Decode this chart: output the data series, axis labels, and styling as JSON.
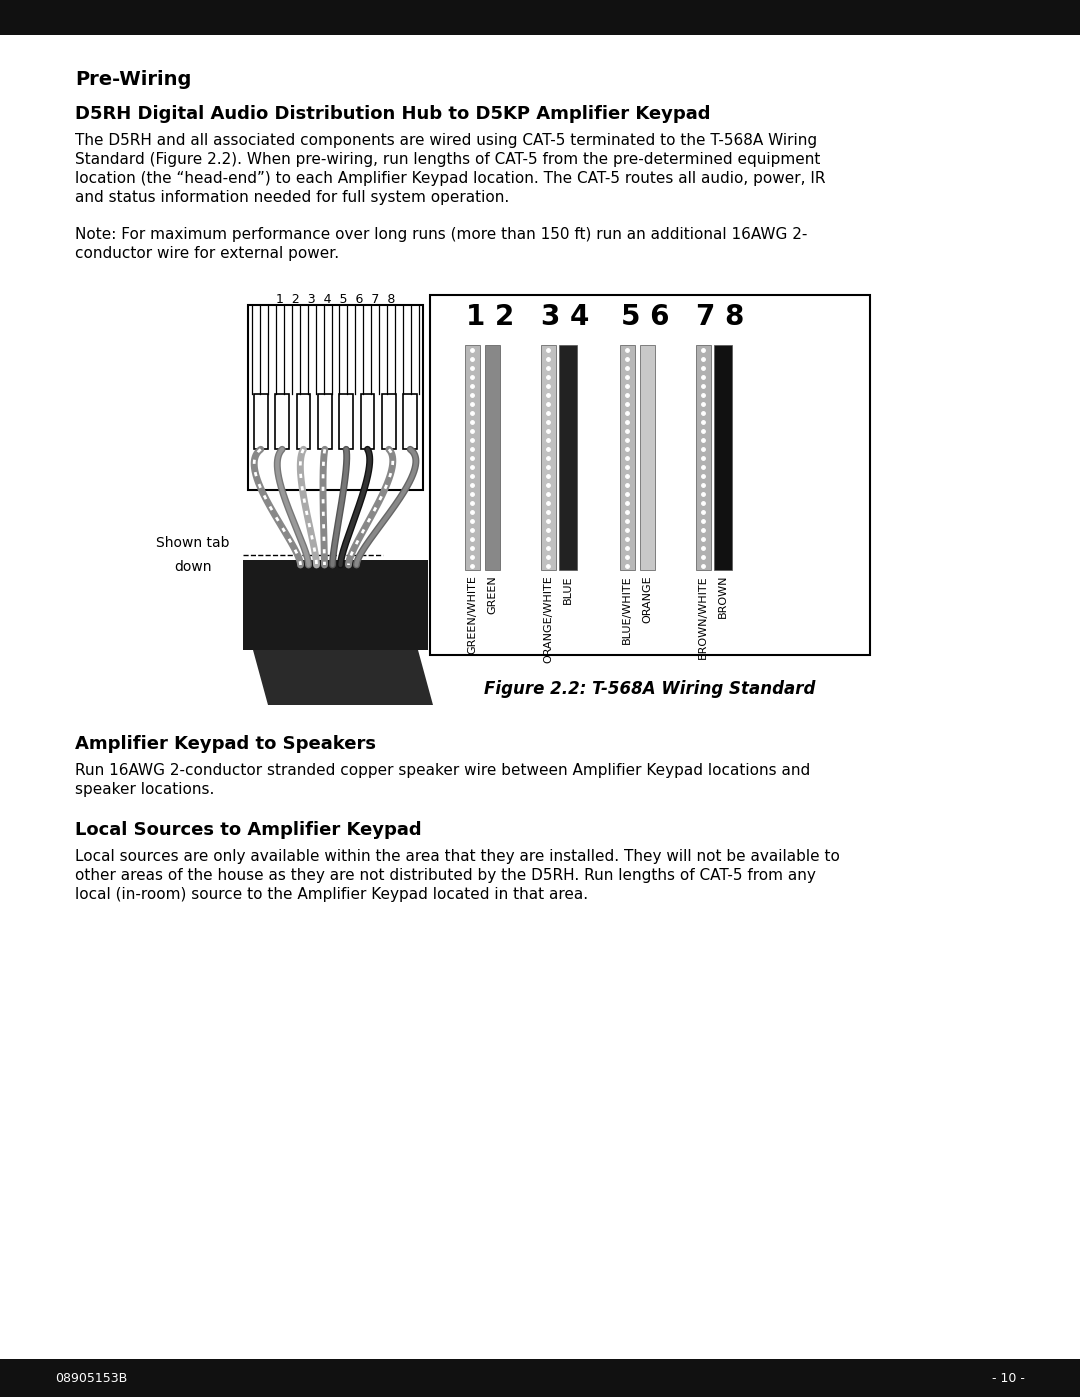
{
  "title_bar_color": "#111111",
  "background_color": "#ffffff",
  "text_color": "#000000",
  "section1_heading": "Pre-Wiring",
  "section2_heading": "D5RH Digital Audio Distribution Hub to D5KP Amplifier Keypad",
  "section2_body_lines": [
    "The D5RH and all associated components are wired using CAT-5 terminated to the T-568A Wiring",
    "Standard (Figure 2.2). When pre-wiring, run lengths of CAT-5 from the pre-determined equipment",
    "location (the “head-end”) to each Amplifier Keypad location. The CAT-5 routes all audio, power, IR",
    "and status information needed for full system operation."
  ],
  "note_lines": [
    "Note: For maximum performance over long runs (more than 150 ft) run an additional 16AWG 2-",
    "conductor wire for external power."
  ],
  "figure_caption": "Figure 2.2: T-568A Wiring Standard",
  "shown_tab_text1": "Shown tab",
  "shown_tab_text2": "down",
  "section3_heading": "Amplifier Keypad to Speakers",
  "section3_body_lines": [
    "Run 16AWG 2-conductor stranded copper speaker wire between Amplifier Keypad locations and",
    "speaker locations."
  ],
  "section4_heading": "Local Sources to Amplifier Keypad",
  "section4_body_lines": [
    "Local sources are only available within the area that they are installed. They will not be available to",
    "other areas of the house as they are not distributed by the D5RH. Run lengths of CAT-5 from any",
    "local (in-room) source to the Amplifier Keypad located in that area."
  ],
  "footer_left": "08905153B",
  "footer_right": "- 10 -",
  "pair_labels": [
    "1 2",
    "3 4",
    "5 6",
    "7 8"
  ],
  "pin_numbers": "1  2  3  4  5  6  7  8"
}
